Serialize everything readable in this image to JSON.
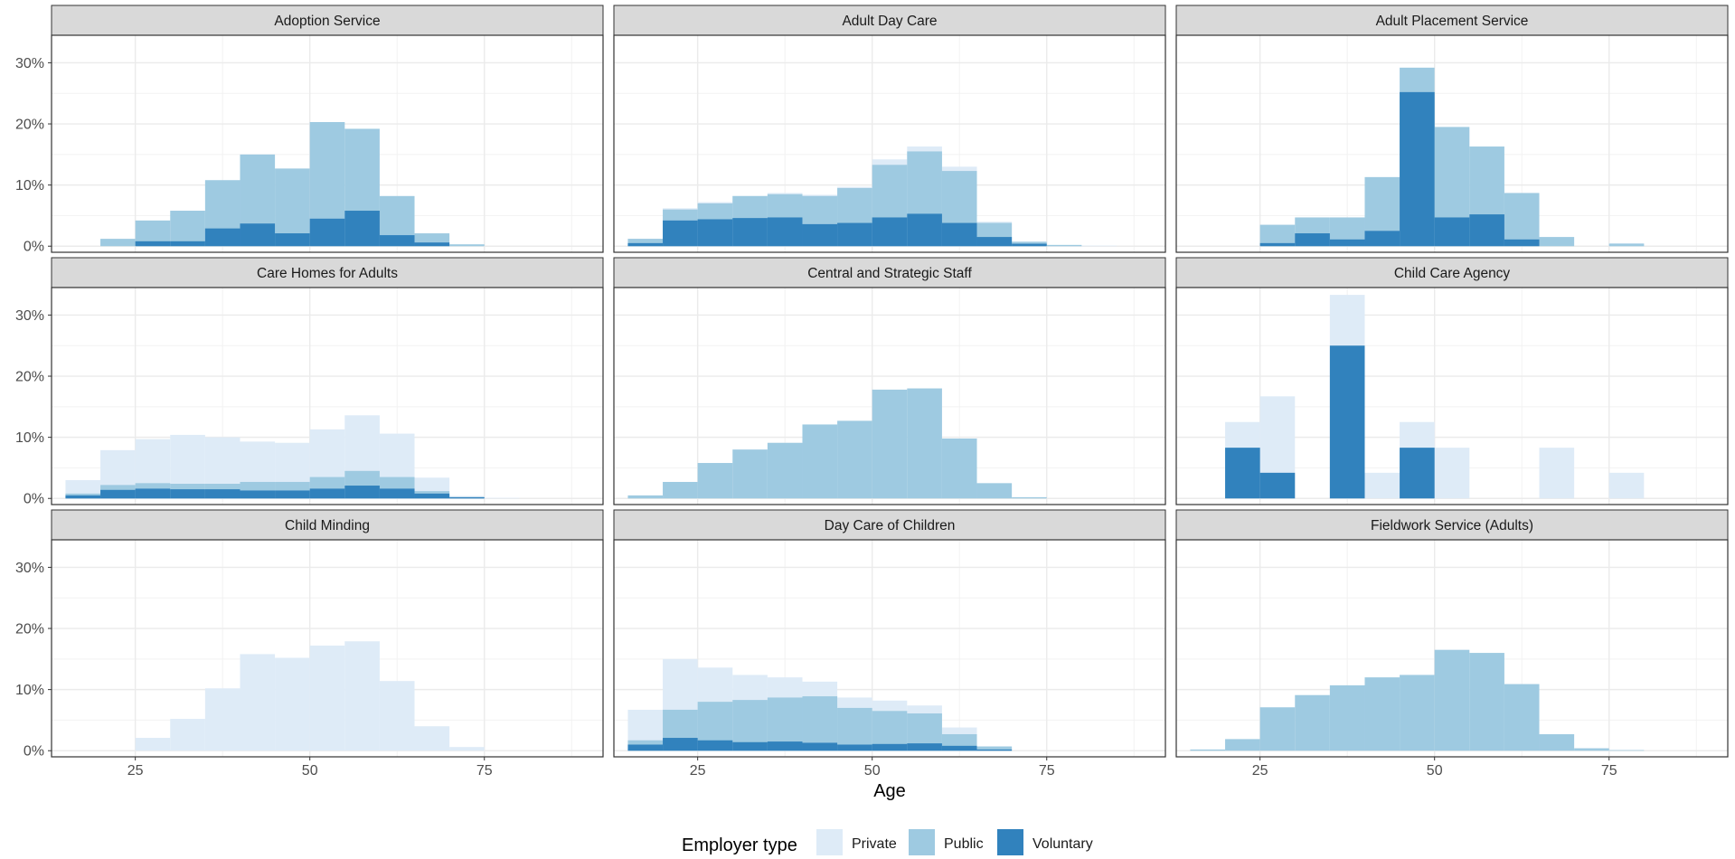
{
  "chart_data": {
    "type": "bar",
    "subtype": "faceted-overlapping-histogram",
    "xlabel": "Age",
    "ylabel": "",
    "xlim": [
      13,
      92
    ],
    "ylim": [
      -0.01,
      0.345
    ],
    "x_ticks": [
      25,
      50,
      75
    ],
    "y_ticks": [
      0,
      0.1,
      0.2,
      0.3
    ],
    "y_tick_labels": [
      "0%",
      "10%",
      "20%",
      "30%"
    ],
    "bin_width": 5,
    "grid": true,
    "legend": {
      "title": "Employer type",
      "position": "bottom",
      "entries": [
        {
          "name": "Private",
          "color": "#deebf7"
        },
        {
          "name": "Public",
          "color": "#9ecae1"
        },
        {
          "name": "Voluntary",
          "color": "#3182bd"
        }
      ]
    },
    "series_order": [
      "Private",
      "Public",
      "Voluntary"
    ],
    "facets": [
      {
        "title": "Adoption Service",
        "series": [
          {
            "name": "Public",
            "bins": [
              [
                20,
                0.012
              ],
              [
                25,
                0.042
              ],
              [
                30,
                0.058
              ],
              [
                35,
                0.108
              ],
              [
                40,
                0.15
              ],
              [
                45,
                0.127
              ],
              [
                50,
                0.203
              ],
              [
                55,
                0.192
              ],
              [
                60,
                0.082
              ],
              [
                65,
                0.021
              ],
              [
                70,
                0.003
              ]
            ]
          },
          {
            "name": "Voluntary",
            "bins": [
              [
                25,
                0.008
              ],
              [
                30,
                0.008
              ],
              [
                35,
                0.029
              ],
              [
                40,
                0.037
              ],
              [
                45,
                0.021
              ],
              [
                50,
                0.045
              ],
              [
                55,
                0.058
              ],
              [
                60,
                0.018
              ],
              [
                65,
                0.006
              ]
            ]
          }
        ]
      },
      {
        "title": "Adult Day Care",
        "series": [
          {
            "name": "Private",
            "bins": [
              [
                15,
                0.012
              ],
              [
                20,
                0.062
              ],
              [
                25,
                0.072
              ],
              [
                30,
                0.082
              ],
              [
                35,
                0.087
              ],
              [
                40,
                0.084
              ],
              [
                45,
                0.097
              ],
              [
                50,
                0.142
              ],
              [
                55,
                0.163
              ],
              [
                60,
                0.13
              ],
              [
                65,
                0.04
              ],
              [
                70,
                0.008
              ],
              [
                75,
                0.002
              ],
              [
                80,
                0.001
              ]
            ]
          },
          {
            "name": "Public",
            "bins": [
              [
                15,
                0.012
              ],
              [
                20,
                0.06
              ],
              [
                25,
                0.07
              ],
              [
                30,
                0.082
              ],
              [
                35,
                0.085
              ],
              [
                40,
                0.082
              ],
              [
                45,
                0.095
              ],
              [
                50,
                0.133
              ],
              [
                55,
                0.155
              ],
              [
                60,
                0.123
              ],
              [
                65,
                0.038
              ],
              [
                70,
                0.007
              ],
              [
                75,
                0.002
              ]
            ]
          },
          {
            "name": "Voluntary",
            "bins": [
              [
                15,
                0.005
              ],
              [
                20,
                0.042
              ],
              [
                25,
                0.044
              ],
              [
                30,
                0.046
              ],
              [
                35,
                0.047
              ],
              [
                40,
                0.036
              ],
              [
                45,
                0.038
              ],
              [
                50,
                0.047
              ],
              [
                55,
                0.053
              ],
              [
                60,
                0.038
              ],
              [
                65,
                0.015
              ],
              [
                70,
                0.004
              ]
            ]
          }
        ]
      },
      {
        "title": "Adult Placement Service",
        "series": [
          {
            "name": "Private",
            "bins": [
              [
                75,
                0.005
              ]
            ]
          },
          {
            "name": "Public",
            "bins": [
              [
                25,
                0.035
              ],
              [
                30,
                0.047
              ],
              [
                35,
                0.047
              ],
              [
                40,
                0.113
              ],
              [
                45,
                0.292
              ],
              [
                50,
                0.195
              ],
              [
                55,
                0.163
              ],
              [
                60,
                0.087
              ],
              [
                65,
                0.015
              ],
              [
                75,
                0.004
              ]
            ]
          },
          {
            "name": "Voluntary",
            "bins": [
              [
                25,
                0.005
              ],
              [
                30,
                0.021
              ],
              [
                35,
                0.011
              ],
              [
                40,
                0.025
              ],
              [
                45,
                0.252
              ],
              [
                50,
                0.047
              ],
              [
                55,
                0.052
              ],
              [
                60,
                0.011
              ]
            ]
          }
        ]
      },
      {
        "title": "Care Homes for Adults",
        "series": [
          {
            "name": "Private",
            "bins": [
              [
                15,
                0.03
              ],
              [
                20,
                0.079
              ],
              [
                25,
                0.097
              ],
              [
                30,
                0.104
              ],
              [
                35,
                0.1
              ],
              [
                40,
                0.093
              ],
              [
                45,
                0.091
              ],
              [
                50,
                0.113
              ],
              [
                55,
                0.136
              ],
              [
                60,
                0.106
              ],
              [
                65,
                0.034
              ],
              [
                70,
                0.004
              ],
              [
                75,
                0.001
              ]
            ]
          },
          {
            "name": "Public",
            "bins": [
              [
                15,
                0.008
              ],
              [
                20,
                0.022
              ],
              [
                25,
                0.025
              ],
              [
                30,
                0.024
              ],
              [
                35,
                0.024
              ],
              [
                40,
                0.027
              ],
              [
                45,
                0.027
              ],
              [
                50,
                0.035
              ],
              [
                55,
                0.045
              ],
              [
                60,
                0.035
              ],
              [
                65,
                0.012
              ],
              [
                70,
                0.002
              ]
            ]
          },
          {
            "name": "Voluntary",
            "bins": [
              [
                15,
                0.005
              ],
              [
                20,
                0.014
              ],
              [
                25,
                0.016
              ],
              [
                30,
                0.015
              ],
              [
                35,
                0.015
              ],
              [
                40,
                0.013
              ],
              [
                45,
                0.013
              ],
              [
                50,
                0.016
              ],
              [
                55,
                0.021
              ],
              [
                60,
                0.016
              ],
              [
                65,
                0.008
              ],
              [
                70,
                0.002
              ]
            ]
          }
        ]
      },
      {
        "title": "Central and Strategic Staff",
        "series": [
          {
            "name": "Public",
            "bins": [
              [
                15,
                0.005
              ],
              [
                20,
                0.027
              ],
              [
                25,
                0.058
              ],
              [
                30,
                0.08
              ],
              [
                35,
                0.091
              ],
              [
                40,
                0.121
              ],
              [
                45,
                0.127
              ],
              [
                50,
                0.178
              ],
              [
                55,
                0.18
              ],
              [
                60,
                0.098
              ],
              [
                65,
                0.025
              ],
              [
                70,
                0.002
              ]
            ]
          }
        ]
      },
      {
        "title": "Child Care Agency",
        "series": [
          {
            "name": "Private",
            "bins": [
              [
                20,
                0.125
              ],
              [
                25,
                0.167
              ],
              [
                35,
                0.333
              ],
              [
                40,
                0.042
              ],
              [
                45,
                0.125
              ],
              [
                50,
                0.083
              ],
              [
                65,
                0.083
              ],
              [
                75,
                0.042
              ]
            ]
          },
          {
            "name": "Voluntary",
            "bins": [
              [
                20,
                0.083
              ],
              [
                25,
                0.042
              ],
              [
                35,
                0.25
              ],
              [
                45,
                0.083
              ]
            ]
          }
        ]
      },
      {
        "title": "Child Minding",
        "series": [
          {
            "name": "Private",
            "bins": [
              [
                25,
                0.021
              ],
              [
                30,
                0.052
              ],
              [
                35,
                0.102
              ],
              [
                40,
                0.158
              ],
              [
                45,
                0.152
              ],
              [
                50,
                0.172
              ],
              [
                55,
                0.179
              ],
              [
                60,
                0.114
              ],
              [
                65,
                0.04
              ],
              [
                70,
                0.006
              ]
            ]
          }
        ]
      },
      {
        "title": "Day Care of Children",
        "series": [
          {
            "name": "Private",
            "bins": [
              [
                15,
                0.067
              ],
              [
                20,
                0.15
              ],
              [
                25,
                0.136
              ],
              [
                30,
                0.124
              ],
              [
                35,
                0.12
              ],
              [
                40,
                0.113
              ],
              [
                45,
                0.087
              ],
              [
                50,
                0.082
              ],
              [
                55,
                0.074
              ],
              [
                60,
                0.038
              ],
              [
                65,
                0.006
              ]
            ]
          },
          {
            "name": "Public",
            "bins": [
              [
                15,
                0.017
              ],
              [
                20,
                0.067
              ],
              [
                25,
                0.08
              ],
              [
                30,
                0.083
              ],
              [
                35,
                0.087
              ],
              [
                40,
                0.089
              ],
              [
                45,
                0.07
              ],
              [
                50,
                0.065
              ],
              [
                55,
                0.061
              ],
              [
                60,
                0.027
              ],
              [
                65,
                0.007
              ]
            ]
          },
          {
            "name": "Voluntary",
            "bins": [
              [
                15,
                0.01
              ],
              [
                20,
                0.021
              ],
              [
                25,
                0.017
              ],
              [
                30,
                0.014
              ],
              [
                35,
                0.015
              ],
              [
                40,
                0.013
              ],
              [
                45,
                0.01
              ],
              [
                50,
                0.011
              ],
              [
                55,
                0.012
              ],
              [
                60,
                0.008
              ],
              [
                65,
                0.002
              ]
            ]
          }
        ]
      },
      {
        "title": "Fieldwork Service (Adults)",
        "series": [
          {
            "name": "Public",
            "bins": [
              [
                15,
                0.002
              ],
              [
                20,
                0.019
              ],
              [
                25,
                0.071
              ],
              [
                30,
                0.091
              ],
              [
                35,
                0.107
              ],
              [
                40,
                0.12
              ],
              [
                45,
                0.124
              ],
              [
                50,
                0.165
              ],
              [
                55,
                0.16
              ],
              [
                60,
                0.109
              ],
              [
                65,
                0.027
              ],
              [
                70,
                0.004
              ],
              [
                75,
                0.001
              ]
            ]
          }
        ]
      }
    ]
  }
}
